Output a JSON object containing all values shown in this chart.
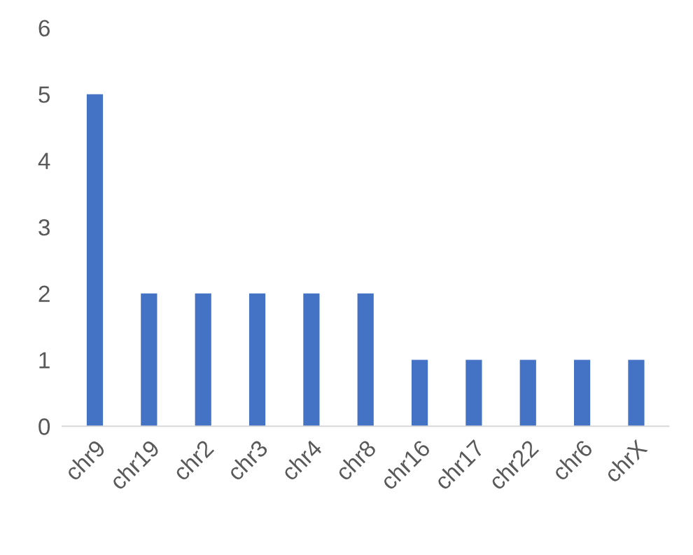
{
  "chart_data": {
    "type": "bar",
    "categories": [
      "chr9",
      "chr19",
      "chr2",
      "chr3",
      "chr4",
      "chr8",
      "chr16",
      "chr17",
      "chr22",
      "chr6",
      "chrX"
    ],
    "values": [
      5,
      2,
      2,
      2,
      2,
      2,
      1,
      1,
      1,
      1,
      1
    ],
    "color": "#4472c4",
    "ylim": [
      0,
      6
    ],
    "yticks": [
      0,
      1,
      2,
      3,
      4,
      5,
      6
    ],
    "grid": false,
    "legend": false
  }
}
